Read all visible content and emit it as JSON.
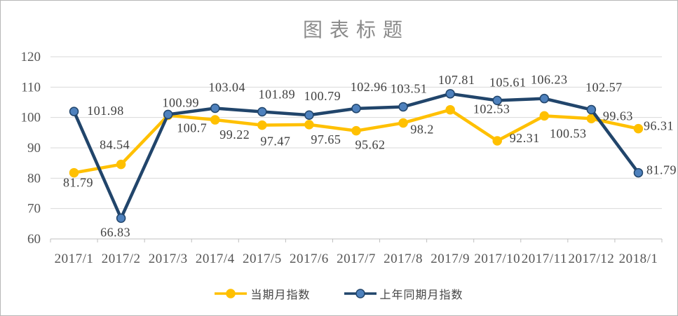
{
  "chart_data": {
    "type": "line",
    "title": "图表标题",
    "categories": [
      "2017/1",
      "2017/2",
      "2017/3",
      "2017/4",
      "2017/5",
      "2017/6",
      "2017/7",
      "2017/8",
      "2017/9",
      "2017/10",
      "2017/11",
      "2017/12",
      "2018/1"
    ],
    "series": [
      {
        "name": "当期月指数",
        "color": "#FFC000",
        "marker_fill": "#FFC000",
        "marker_stroke": "#FFC000",
        "values": [
          81.79,
          84.54,
          100.7,
          99.22,
          97.47,
          97.65,
          95.62,
          98.2,
          102.53,
          92.31,
          100.53,
          99.63,
          96.31
        ],
        "label_offsets": [
          [
            6,
            20
          ],
          [
            -9,
            -22
          ],
          [
            34,
            24
          ],
          [
            28,
            27
          ],
          [
            19,
            29
          ],
          [
            24,
            27
          ],
          [
            20,
            26
          ],
          [
            27,
            15
          ],
          [
            59,
            5
          ],
          [
            39,
            2
          ],
          [
            34,
            31
          ],
          [
            38,
            2
          ],
          [
            29,
            2
          ]
        ]
      },
      {
        "name": "上年同期月指数",
        "color": "#21456B",
        "marker_fill": "#4E81BD",
        "marker_stroke": "#21456B",
        "values": [
          101.98,
          66.83,
          100.99,
          103.04,
          101.89,
          100.79,
          102.96,
          103.51,
          107.81,
          105.61,
          106.23,
          102.57,
          81.79
        ],
        "label_offsets": [
          [
            45,
            5
          ],
          [
            -8,
            26
          ],
          [
            18,
            -11
          ],
          [
            17,
            -24
          ],
          [
            21,
            -19
          ],
          [
            19,
            -21
          ],
          [
            18,
            -25
          ],
          [
            8,
            -20
          ],
          [
            9,
            -14
          ],
          [
            15,
            -20
          ],
          [
            7,
            -21
          ],
          [
            18,
            -26
          ],
          [
            33,
            2
          ]
        ]
      }
    ],
    "ylim": [
      60,
      120
    ],
    "ytick_step": 10,
    "ytick_labels": [
      "60",
      "70",
      "80",
      "90",
      "100",
      "110",
      "120"
    ],
    "grid": true,
    "legend_position": "bottom",
    "colors": {
      "gridline": "#d9d9d9",
      "axis_line": "#bfbfbf",
      "tick": "#bfbfbf",
      "axis_text": "#555555",
      "data_label_text": "#3f3f3f",
      "title_text": "#8a8a8a"
    }
  }
}
